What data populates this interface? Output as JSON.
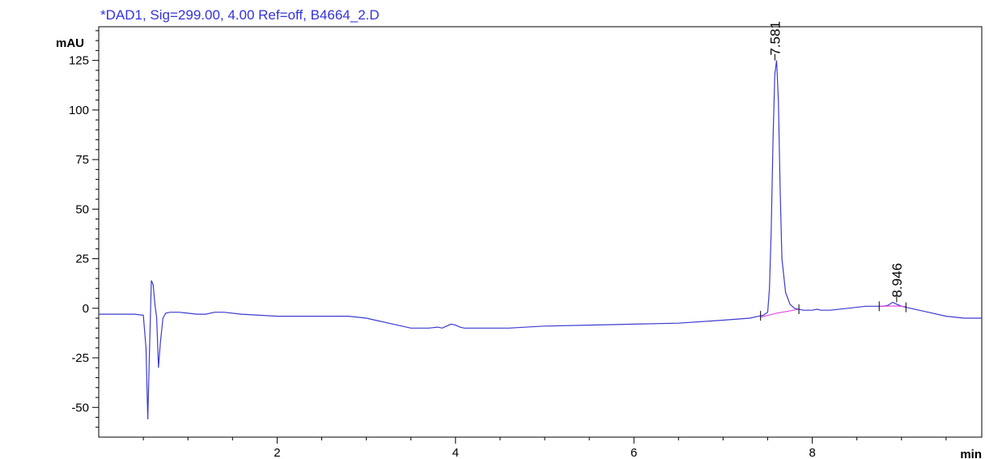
{
  "chart_data": {
    "type": "line",
    "title": "*DAD1, Sig=299.00, 4.00 Ref=off, B4664_2.D",
    "xlabel": "min",
    "ylabel": "mAU",
    "xlim": [
      0.0,
      9.9
    ],
    "ylim": [
      -65,
      142
    ],
    "x_ticks": [
      2,
      4,
      6,
      8
    ],
    "x_tick_labels": [
      "2",
      "4",
      "6",
      "8"
    ],
    "y_ticks": [
      -50,
      -25,
      0,
      25,
      50,
      75,
      100,
      125
    ],
    "y_tick_labels": [
      "-50",
      "-25",
      "0",
      "25",
      "50",
      "75",
      "100",
      "125"
    ],
    "grid": false,
    "colors": {
      "signal": "#3b3bd0",
      "baseline": "#e23fe2",
      "axis": "#000000",
      "title": "#3333dd"
    },
    "series": [
      {
        "role": "signal",
        "x": [
          0.0,
          0.4,
          0.5,
          0.53,
          0.55,
          0.57,
          0.59,
          0.61,
          0.63,
          0.65,
          0.67,
          0.69,
          0.72,
          0.75,
          0.8,
          0.9,
          1.0,
          1.1,
          1.2,
          1.3,
          1.4,
          1.6,
          1.8,
          2.0,
          2.2,
          2.5,
          2.8,
          3.0,
          3.1,
          3.3,
          3.5,
          3.7,
          3.8,
          3.85,
          3.9,
          3.95,
          4.0,
          4.05,
          4.1,
          4.3,
          4.6,
          5.0,
          5.5,
          6.0,
          6.5,
          7.0,
          7.3,
          7.4,
          7.45,
          7.5,
          7.52,
          7.54,
          7.56,
          7.58,
          7.6,
          7.62,
          7.64,
          7.66,
          7.7,
          7.75,
          7.8,
          7.9,
          8.0,
          8.05,
          8.1,
          8.2,
          8.4,
          8.6,
          8.8,
          8.85,
          8.9,
          8.95,
          9.0,
          9.1,
          9.3,
          9.5,
          9.7,
          9.9
        ],
        "y": [
          -3,
          -3,
          -3.5,
          -20,
          -56,
          -20,
          14,
          12,
          2,
          -5,
          -30,
          -18,
          -5,
          -2.5,
          -2,
          -2,
          -2.5,
          -3,
          -3,
          -2,
          -2,
          -3,
          -3.5,
          -4,
          -4,
          -4,
          -4,
          -5,
          -6,
          -8,
          -10,
          -10,
          -9.5,
          -10,
          -9,
          -8,
          -8.5,
          -9.5,
          -10,
          -10,
          -10,
          -9,
          -8.5,
          -8,
          -7.5,
          -6,
          -5,
          -4,
          -3.5,
          -2,
          10,
          40,
          85,
          118,
          125,
          105,
          60,
          25,
          8,
          2,
          0,
          -1,
          -1,
          -0.5,
          -1,
          -1,
          0,
          1,
          1,
          1.5,
          3,
          2,
          1,
          0,
          -2,
          -4,
          -5,
          -5
        ]
      },
      {
        "role": "baseline",
        "x": [
          7.42,
          7.6,
          7.85
        ],
        "y": [
          -4.5,
          -2.5,
          -0.5
        ]
      },
      {
        "role": "baseline",
        "x": [
          8.75,
          8.95,
          9.05
        ],
        "y": [
          1.0,
          1.2,
          0.8
        ]
      }
    ],
    "annotations": [
      {
        "x": 7.581,
        "y": 125,
        "text": "7.581"
      },
      {
        "x": 8.946,
        "y": 3,
        "text": "8.946"
      }
    ],
    "integration_marks": [
      7.42,
      7.85,
      8.75,
      9.05
    ]
  }
}
